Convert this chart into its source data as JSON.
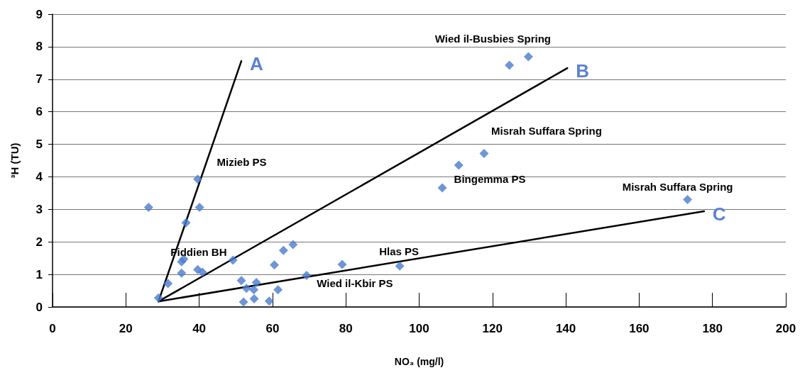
{
  "chart_data": {
    "type": "scatter",
    "xlabel": "NO₃ (mg/l)",
    "ylabel": "³H (TU)",
    "xlim": [
      0,
      200
    ],
    "xticks": [
      0,
      20,
      40,
      60,
      80,
      100,
      120,
      140,
      160,
      180,
      200
    ],
    "ylim": [
      0,
      9
    ],
    "yticks": [
      0,
      1,
      2,
      3,
      4,
      5,
      6,
      7,
      8,
      9
    ],
    "grid": "y",
    "marker": "diamond",
    "legend": false,
    "series": [
      {
        "color": "#4a7acd",
        "x": [
          26.2,
          28.9,
          31.5,
          35.2,
          35.2,
          35.8,
          36.4,
          39.6,
          40.1,
          39.6,
          40.9,
          49.2,
          51.5,
          52.9,
          52.1,
          54.9,
          55.6,
          55.0,
          59.1,
          61.5,
          60.5,
          63.0,
          65.6,
          69.3,
          79.0,
          94.7,
          124.6,
          129.8,
          117.7,
          110.8,
          106.3,
          173.2
        ],
        "values": [
          3.06,
          0.28,
          0.72,
          1.04,
          1.39,
          1.47,
          2.59,
          3.93,
          3.06,
          1.15,
          1.07,
          1.44,
          0.81,
          0.57,
          0.15,
          0.53,
          0.75,
          0.25,
          0.18,
          0.53,
          1.29,
          1.74,
          1.92,
          0.97,
          1.31,
          1.26,
          7.43,
          7.69,
          4.72,
          4.36,
          3.66,
          3.3
        ]
      },
      {
        "type": "line",
        "name": "A",
        "color": "#000000",
        "marker": "none",
        "x": [
          28.9,
          51.5
        ],
        "values": [
          0.17,
          7.56
        ]
      },
      {
        "type": "line",
        "name": "B",
        "color": "#000000",
        "marker": "none",
        "x": [
          28.9,
          140.4
        ],
        "values": [
          0.17,
          7.34
        ]
      },
      {
        "type": "line",
        "name": "C",
        "color": "#000000",
        "marker": "none",
        "x": [
          28.9,
          177.7
        ],
        "values": [
          0.17,
          2.94
        ]
      }
    ],
    "annotations": [
      {
        "text": "Wied il-Busbies Spring",
        "x": 129.8,
        "y": 7.69
      },
      {
        "text": "Misrah Suffara Spring",
        "x": 117.7,
        "y": 4.72
      },
      {
        "text": "Bingemma PS",
        "x": 106.3,
        "y": 3.66
      },
      {
        "text": "Misrah Suffara Spring",
        "x": 173.2,
        "y": 3.3
      },
      {
        "text": "Mizieb PS",
        "x": 39.6,
        "y": 3.93
      },
      {
        "text": "Fiddien BH",
        "x": 35.8,
        "y": 1.47
      },
      {
        "text": "Hlas PS",
        "x": 94.7,
        "y": 1.26
      },
      {
        "text": "Wied il-Kbir PS",
        "x": 69.3,
        "y": 0.97
      }
    ]
  }
}
